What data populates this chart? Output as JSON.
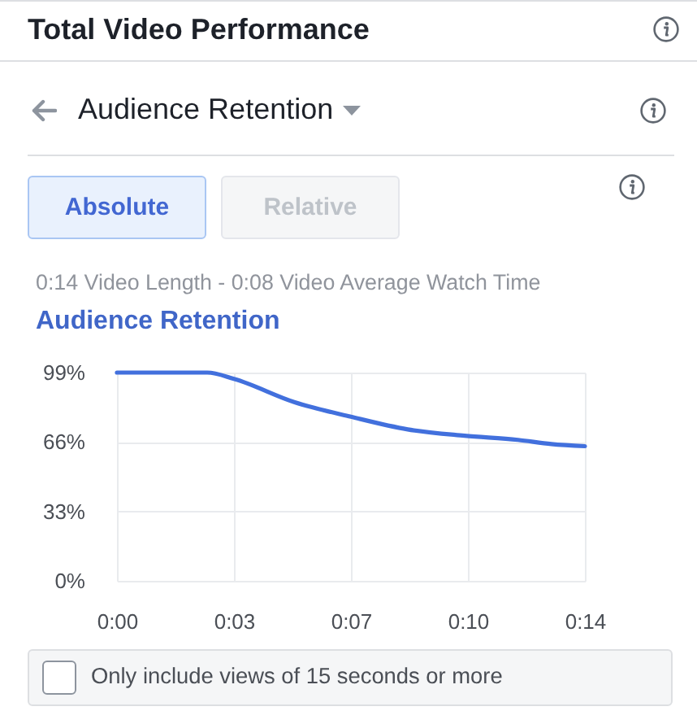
{
  "chart_data": {
    "type": "line",
    "title": "Audience Retention",
    "subtitle": "0:14 Video Length - 0:08 Video Average Watch Time",
    "annotations": [
      "Total Video Performance",
      "Audience Retention",
      "Absolute",
      "Relative",
      "Only include views of 15 seconds or more"
    ],
    "x": [
      0,
      2.7,
      3.5,
      5.3,
      7,
      8.7,
      10.4,
      12,
      13,
      14
    ],
    "values": [
      99,
      99,
      96,
      85,
      78,
      72,
      69,
      67,
      65,
      64
    ],
    "color": "#4270dd",
    "xlim": [
      0,
      14
    ],
    "xticks": [
      {
        "value": 0,
        "label": "0:00"
      },
      {
        "value": 3.5,
        "label": "0:03"
      },
      {
        "value": 7,
        "label": "0:07"
      },
      {
        "value": 10.5,
        "label": "0:10"
      },
      {
        "value": 14,
        "label": "0:14"
      }
    ],
    "ylim": [
      0,
      99
    ],
    "yticks": [
      {
        "value": 0,
        "label": "0%"
      },
      {
        "value": 33,
        "label": "33%"
      },
      {
        "value": 66,
        "label": "66%"
      },
      {
        "value": 99,
        "label": "99%"
      }
    ],
    "grid": true
  }
}
